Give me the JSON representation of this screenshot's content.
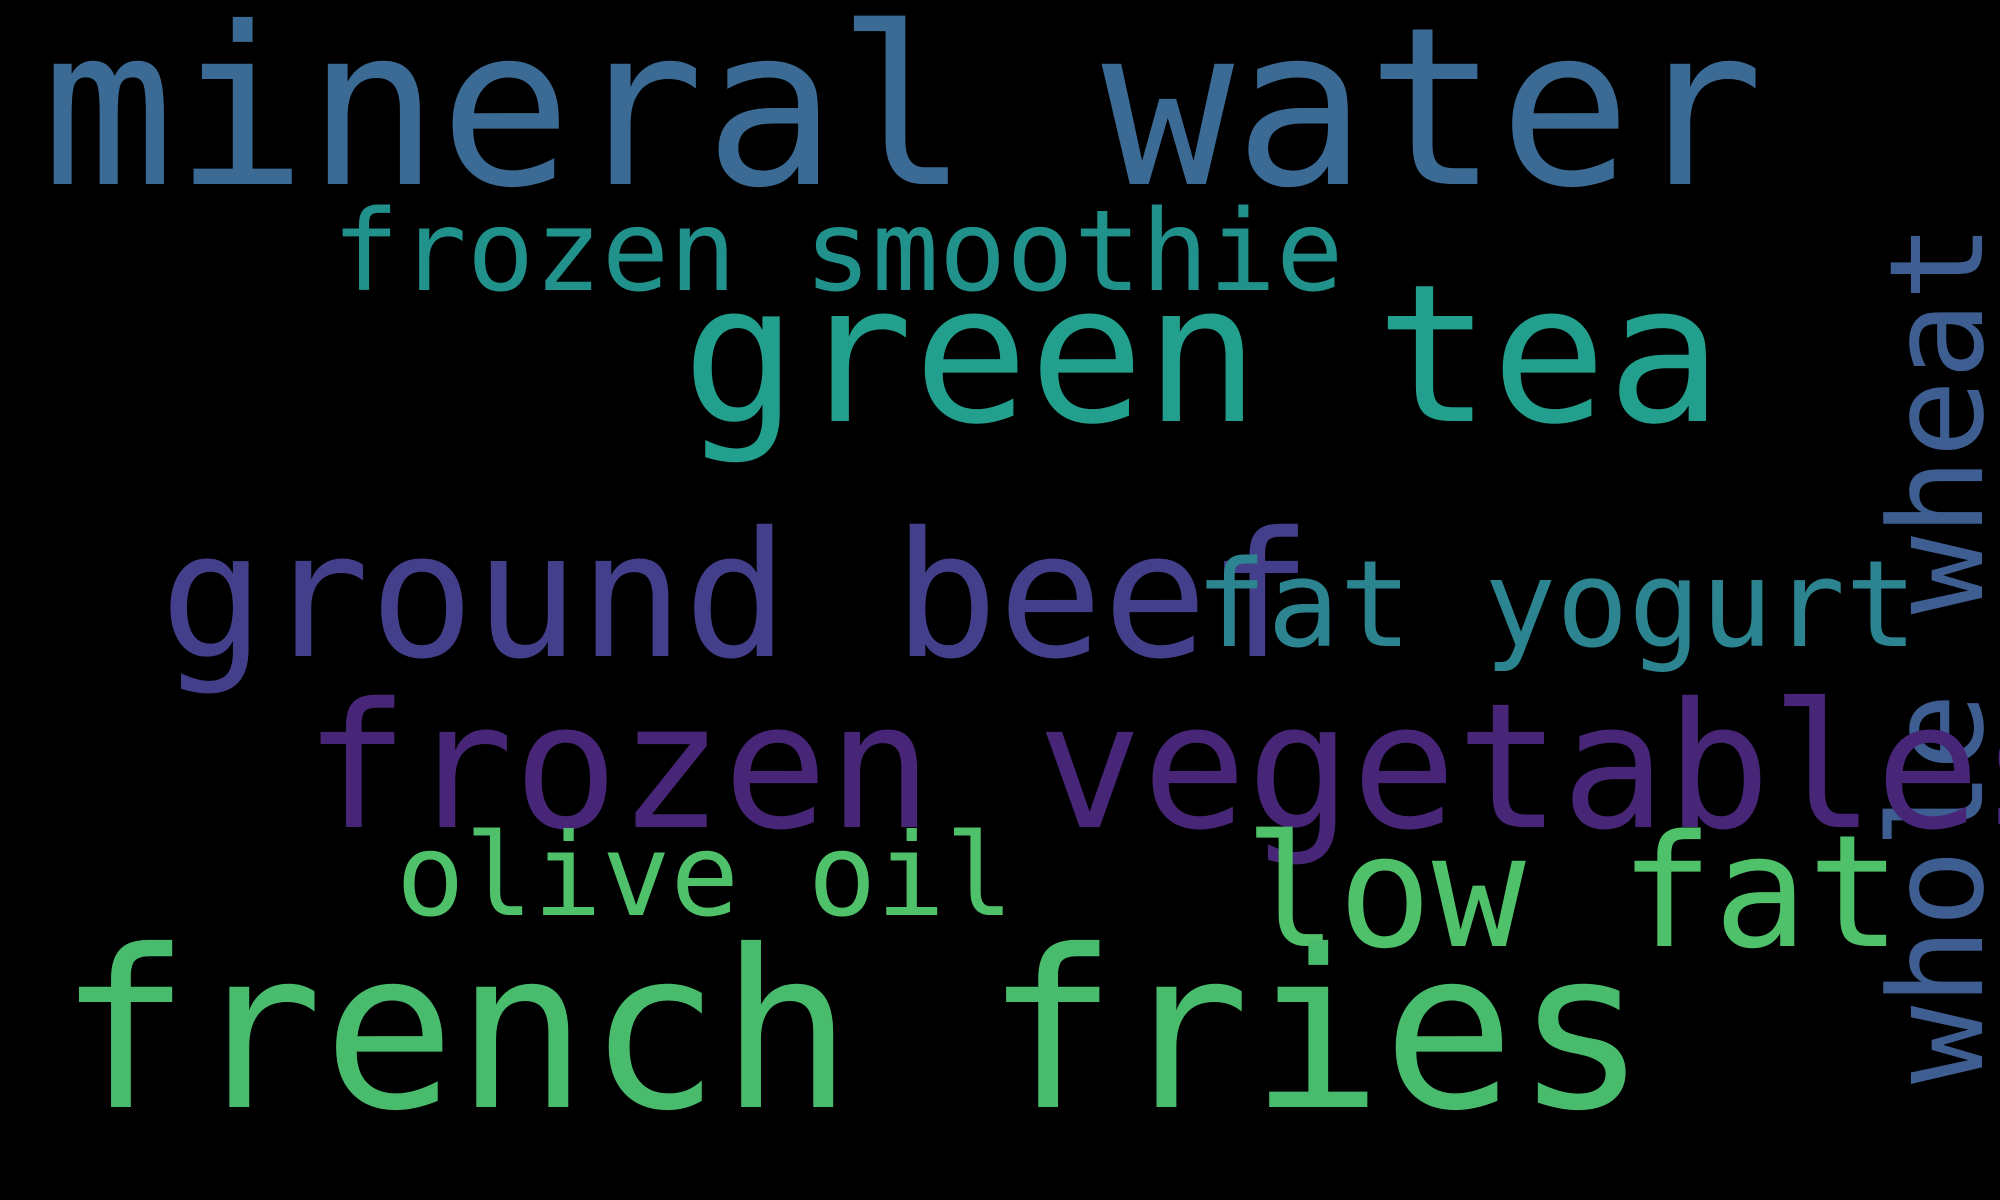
{
  "background_color": "#000000",
  "words": [
    {
      "text": "mineral water",
      "color": "#3b6b95"
    },
    {
      "text": "frozen smoothie",
      "color": "#21918c"
    },
    {
      "text": "green tea",
      "color": "#23a08d"
    },
    {
      "text": "whole wheat",
      "color": "#3e5e92"
    },
    {
      "text": "ground beef",
      "color": "#433f8b"
    },
    {
      "text": "fat yogurt",
      "color": "#2b8490"
    },
    {
      "text": "frozen vegetables",
      "color": "#482677"
    },
    {
      "text": "olive oil",
      "color": "#4fc16a"
    },
    {
      "text": "low fat",
      "color": "#4fc16a"
    },
    {
      "text": "french fries",
      "color": "#48bb6d"
    }
  ]
}
